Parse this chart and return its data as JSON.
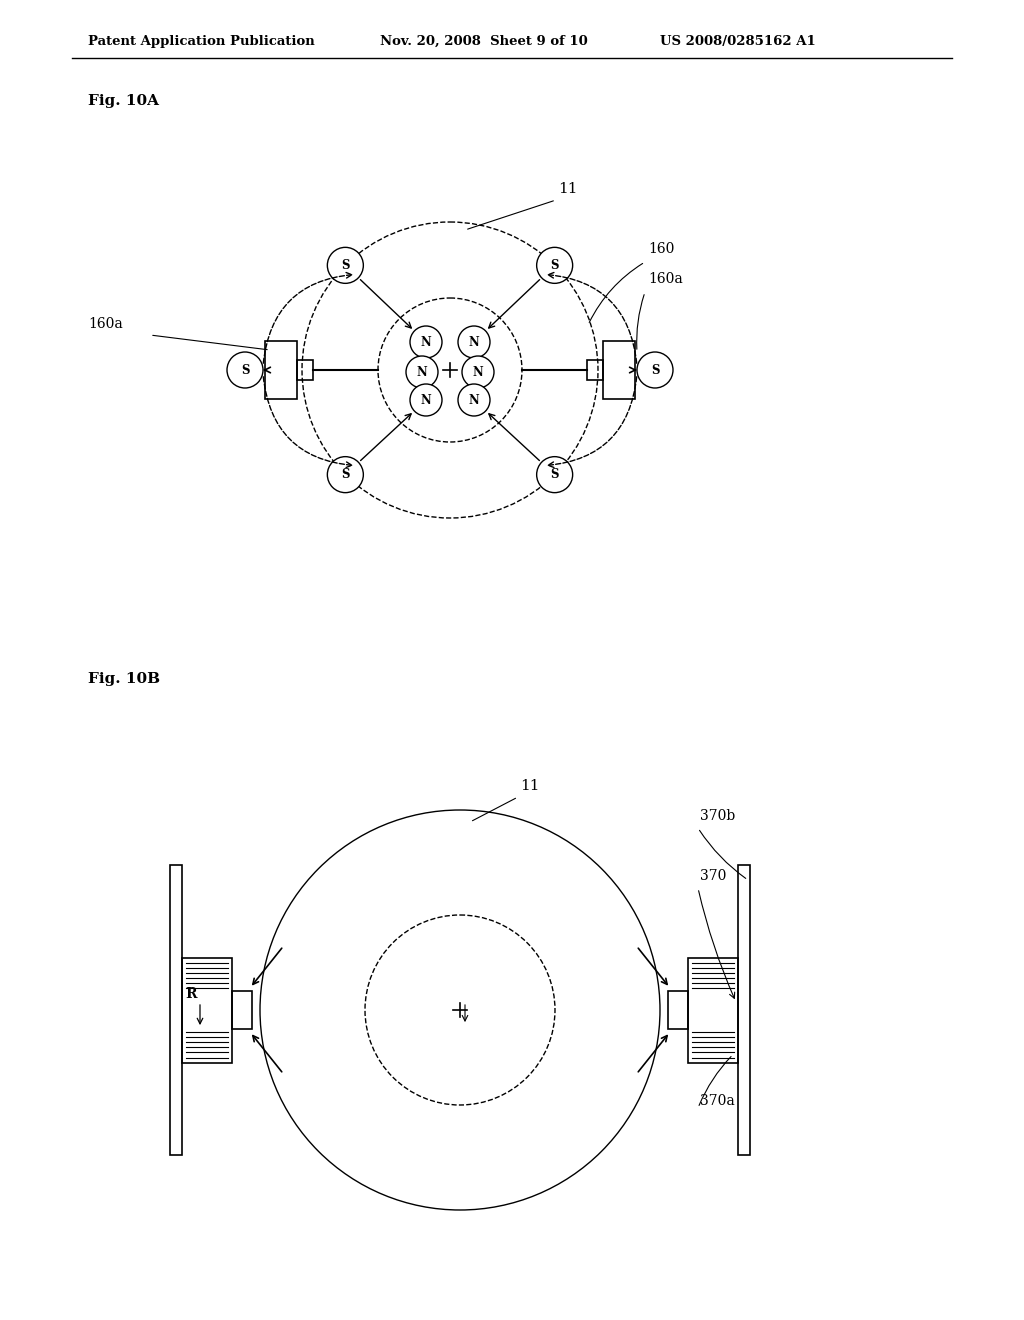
{
  "bg_color": "#ffffff",
  "line_color": "#000000",
  "header_text": "Patent Application Publication",
  "header_date": "Nov. 20, 2008  Sheet 9 of 10",
  "header_patent": "US 2008/0285162 A1",
  "fig10A_label": "Fig. 10A",
  "fig10B_label": "Fig. 10B",
  "label_11_A": "11",
  "label_160": "160",
  "label_160a_right": "160a",
  "label_160a_left": "160a",
  "label_11_B": "11",
  "label_370b": "370b",
  "label_370": "370",
  "label_370a": "370a",
  "label_R": "R"
}
